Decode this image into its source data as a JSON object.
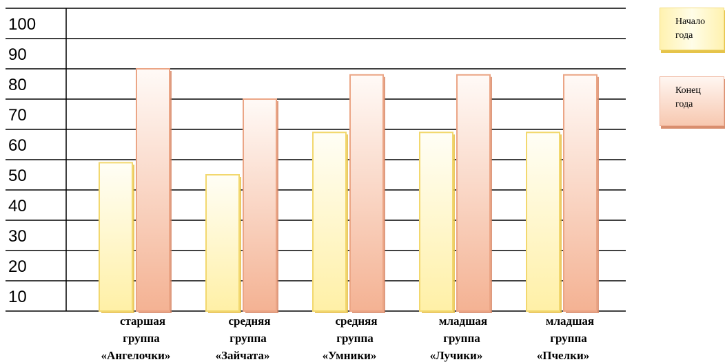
{
  "chart_data": {
    "type": "bar",
    "categories": [
      "старшая группа «Ангелочки»",
      "средняя группа «Зайчата»",
      "средняя группа «Умники»",
      "младшая группа «Лучики»",
      "младшая группа «Пчелки»"
    ],
    "category_lines": [
      [
        "старшая",
        "группа",
        "«Ангелочки»"
      ],
      [
        "средняя",
        "группа",
        "«Зайчата»"
      ],
      [
        "средняя",
        "группа",
        "«Умники»"
      ],
      [
        "младшая",
        "группа",
        "«Лучики»"
      ],
      [
        "младшая",
        "группа",
        "«Пчелки»"
      ]
    ],
    "series": [
      {
        "name": "Начало года",
        "values": [
          49,
          45,
          59,
          59,
          59
        ],
        "color": "#fff3b8"
      },
      {
        "name": "Конец года",
        "values": [
          80,
          70,
          78,
          78,
          78
        ],
        "color": "#f6b597"
      }
    ],
    "y_ticks": [
      10,
      20,
      30,
      40,
      50,
      60,
      70,
      80,
      90,
      100
    ],
    "ylim": [
      0,
      100
    ],
    "grid": true,
    "legend": "right",
    "title": "",
    "xlabel": "",
    "ylabel": ""
  },
  "legend": {
    "start_line1": "Начало",
    "start_line2": "года",
    "end_line1": "Конец",
    "end_line2": "года"
  }
}
